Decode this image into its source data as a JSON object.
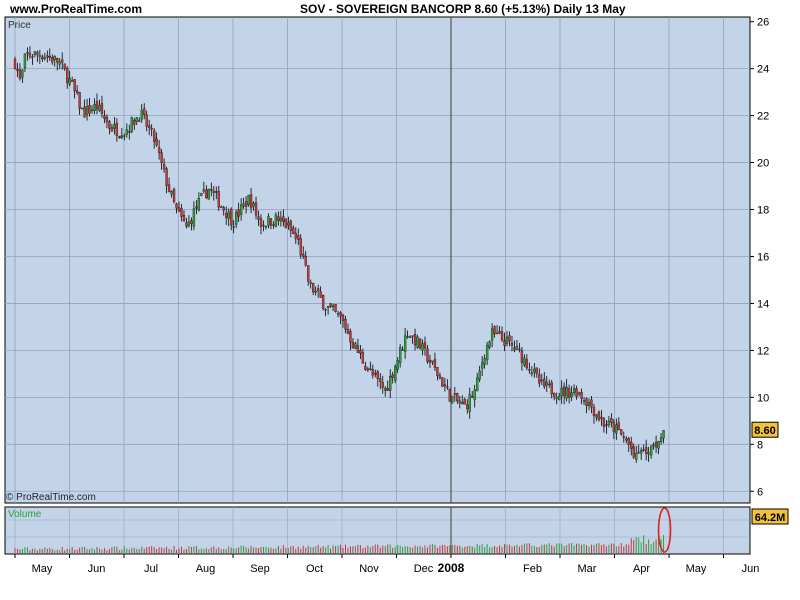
{
  "header": {
    "site": "www.ProRealTime.com",
    "ticker_line": "SOV - SOVEREIGN BANCORP    8.60 (+5.13%)    Daily  13 May"
  },
  "price_panel": {
    "label": "Price",
    "copyright": "© ProRealTime.com",
    "last_price_label": "8.60"
  },
  "volume_panel": {
    "label": "Volume",
    "last_volume_label": "64.2M"
  },
  "colors": {
    "panel_bg": "#c3d4e8",
    "grid": "#8fa3bd",
    "up_candle": "#2e9e3a",
    "down_candle": "#c33a3a",
    "wick": "#000000",
    "label_bg": "#f2c23c",
    "highlight_ellipse": "#e0201b"
  },
  "chart_data": {
    "type": "candlestick",
    "y_axis": {
      "ticks": [
        6,
        8,
        10,
        12,
        14,
        16,
        18,
        20,
        22,
        24,
        26
      ],
      "range": [
        5.5,
        26.2
      ],
      "side": "right"
    },
    "x_axis": {
      "labels": [
        "May",
        "Jun",
        "Jul",
        "Aug",
        "Sep",
        "Oct",
        "Nov",
        "Dec",
        "2008",
        "Feb",
        "Mar",
        "Apr",
        "May",
        "Jun"
      ]
    },
    "close_anchors": [
      {
        "m": 0.0,
        "v": 24.3
      },
      {
        "m": 0.1,
        "v": 23.4
      },
      {
        "m": 0.2,
        "v": 24.6
      },
      {
        "m": 0.5,
        "v": 24.6
      },
      {
        "m": 0.8,
        "v": 24.3
      },
      {
        "m": 1.0,
        "v": 23.5
      },
      {
        "m": 1.25,
        "v": 22.1
      },
      {
        "m": 1.5,
        "v": 22.4
      },
      {
        "m": 1.75,
        "v": 21.5
      },
      {
        "m": 2.0,
        "v": 21.3
      },
      {
        "m": 2.3,
        "v": 22.1
      },
      {
        "m": 2.55,
        "v": 21.0
      },
      {
        "m": 2.75,
        "v": 19.4
      },
      {
        "m": 2.95,
        "v": 18.0
      },
      {
        "m": 3.15,
        "v": 17.2
      },
      {
        "m": 3.35,
        "v": 18.2
      },
      {
        "m": 3.55,
        "v": 18.9
      },
      {
        "m": 3.75,
        "v": 18.3
      },
      {
        "m": 4.0,
        "v": 17.5
      },
      {
        "m": 4.3,
        "v": 18.5
      },
      {
        "m": 4.5,
        "v": 17.4
      },
      {
        "m": 4.8,
        "v": 17.6
      },
      {
        "m": 5.0,
        "v": 17.3
      },
      {
        "m": 5.2,
        "v": 16.6
      },
      {
        "m": 5.4,
        "v": 14.8
      },
      {
        "m": 5.7,
        "v": 13.9
      },
      {
        "m": 6.0,
        "v": 13.3
      },
      {
        "m": 6.2,
        "v": 12.3
      },
      {
        "m": 6.4,
        "v": 11.5
      },
      {
        "m": 6.6,
        "v": 10.8
      },
      {
        "m": 6.8,
        "v": 10.3
      },
      {
        "m": 7.0,
        "v": 11.5
      },
      {
        "m": 7.2,
        "v": 12.8
      },
      {
        "m": 7.4,
        "v": 12.3
      },
      {
        "m": 7.6,
        "v": 11.6
      },
      {
        "m": 7.8,
        "v": 10.8
      },
      {
        "m": 8.0,
        "v": 10.0
      },
      {
        "m": 8.25,
        "v": 9.6
      },
      {
        "m": 8.45,
        "v": 10.3
      },
      {
        "m": 8.6,
        "v": 11.8
      },
      {
        "m": 8.75,
        "v": 12.7
      },
      {
        "m": 9.0,
        "v": 12.4
      },
      {
        "m": 9.25,
        "v": 11.9
      },
      {
        "m": 9.45,
        "v": 11.3
      },
      {
        "m": 9.65,
        "v": 10.5
      },
      {
        "m": 10.0,
        "v": 10.2
      },
      {
        "m": 10.3,
        "v": 10.3
      },
      {
        "m": 10.55,
        "v": 9.7
      },
      {
        "m": 10.8,
        "v": 8.9
      },
      {
        "m": 11.0,
        "v": 8.7
      },
      {
        "m": 11.2,
        "v": 8.2
      },
      {
        "m": 11.4,
        "v": 7.5
      },
      {
        "m": 11.6,
        "v": 7.8
      },
      {
        "m": 11.75,
        "v": 8.1
      },
      {
        "m": 11.9,
        "v": 8.6
      }
    ],
    "last_close": 8.6,
    "last_volume_millions": 64.2
  }
}
